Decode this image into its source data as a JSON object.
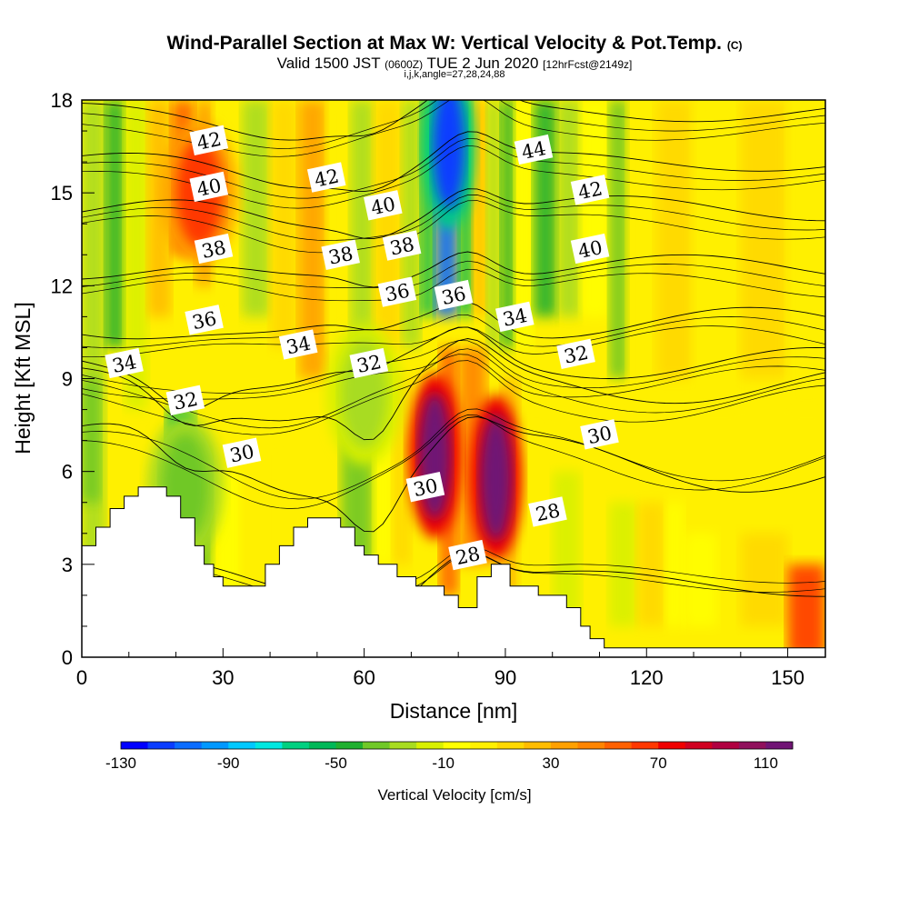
{
  "header": {
    "title_main": "Wind-Parallel Section at Max W: Vertical Velocity & Pot.Temp.",
    "title_mark": "(C)",
    "valid_prefix": "Valid 1500 JST",
    "valid_utc": "(0600Z)",
    "valid_date": "TUE 2 Jun 2020",
    "valid_fcst": "[12hrFcst@2149z]",
    "params": "i,j,k,angle=27,28,24,88"
  },
  "chart_data": {
    "type": "heatmap",
    "xlabel": "Distance [nm]",
    "ylabel": "Height [Kft MSL]",
    "xlim": [
      0,
      158
    ],
    "ylim": [
      0,
      18
    ],
    "x_ticks": [
      0,
      30,
      60,
      90,
      120,
      150
    ],
    "y_ticks": [
      0,
      3,
      6,
      9,
      12,
      15,
      18
    ],
    "colorbar": {
      "label": "Vertical Velocity [cm/s]",
      "min": -130,
      "step": 10,
      "tick_labels": [
        "-130",
        "-90",
        "-50",
        "-10",
        "30",
        "70",
        "110"
      ],
      "colors": [
        "#0000ff",
        "#0a3cff",
        "#0a6cff",
        "#0098ff",
        "#00c8ff",
        "#00e8e0",
        "#00d080",
        "#00b858",
        "#20b030",
        "#70c828",
        "#a8dc20",
        "#d8f000",
        "#ffff00",
        "#fff000",
        "#ffd800",
        "#ffbc00",
        "#ffa000",
        "#ff8400",
        "#ff6000",
        "#ff3800",
        "#f00000",
        "#d00020",
        "#b00040",
        "#90105c",
        "#701474"
      ]
    },
    "velocity_features": [
      {
        "x": 78,
        "y": 16.5,
        "value": -120
      },
      {
        "x": 75,
        "y": 6.5,
        "value": 130
      },
      {
        "x": 88,
        "y": 5.8,
        "value": 130
      },
      {
        "x": 25,
        "y": 15,
        "value": 60
      },
      {
        "x": 22,
        "y": 5.5,
        "value": -40
      },
      {
        "x": 60,
        "y": 8.5,
        "value": -30
      }
    ],
    "terrain": [
      [
        0,
        3.6
      ],
      [
        3,
        3.6
      ],
      [
        3,
        4.2
      ],
      [
        6,
        4.2
      ],
      [
        6,
        4.8
      ],
      [
        9,
        4.8
      ],
      [
        9,
        5.2
      ],
      [
        12,
        5.2
      ],
      [
        12,
        5.5
      ],
      [
        18,
        5.5
      ],
      [
        18,
        5.2
      ],
      [
        21,
        5.2
      ],
      [
        21,
        4.5
      ],
      [
        24,
        4.5
      ],
      [
        24,
        3.6
      ],
      [
        26,
        3.6
      ],
      [
        26,
        3.0
      ],
      [
        28,
        3.0
      ],
      [
        28,
        2.6
      ],
      [
        30,
        2.6
      ],
      [
        30,
        2.3
      ],
      [
        39,
        2.3
      ],
      [
        39,
        3.0
      ],
      [
        42,
        3.0
      ],
      [
        42,
        3.6
      ],
      [
        45,
        3.6
      ],
      [
        45,
        4.2
      ],
      [
        48,
        4.2
      ],
      [
        48,
        4.5
      ],
      [
        55,
        4.5
      ],
      [
        55,
        4.2
      ],
      [
        58,
        4.2
      ],
      [
        58,
        3.6
      ],
      [
        60,
        3.6
      ],
      [
        60,
        3.3
      ],
      [
        63,
        3.3
      ],
      [
        63,
        3.0
      ],
      [
        67,
        3.0
      ],
      [
        67,
        2.6
      ],
      [
        71,
        2.6
      ],
      [
        71,
        2.3
      ],
      [
        77,
        2.3
      ],
      [
        77,
        2.0
      ],
      [
        80,
        2.0
      ],
      [
        80,
        1.6
      ],
      [
        84,
        1.6
      ],
      [
        84,
        2.6
      ],
      [
        87,
        2.6
      ],
      [
        87,
        3.0
      ],
      [
        91,
        3.0
      ],
      [
        91,
        2.3
      ],
      [
        97,
        2.3
      ],
      [
        97,
        2.0
      ],
      [
        103,
        2.0
      ],
      [
        103,
        1.6
      ],
      [
        106,
        1.6
      ],
      [
        106,
        1.0
      ],
      [
        108,
        1.0
      ],
      [
        108,
        0.6
      ],
      [
        111,
        0.6
      ],
      [
        111,
        0.3
      ],
      [
        158,
        0.3
      ]
    ],
    "isentropes": [
      {
        "value": 28,
        "label": "28",
        "y_start": 3.0,
        "amp": 0.3
      },
      {
        "value": 30,
        "label": "30",
        "y_start": 6.8,
        "amp": 0.8
      },
      {
        "value": 32,
        "label": "32",
        "y_start": 8.8,
        "amp": 0.6
      },
      {
        "value": 34,
        "label": "34",
        "y_start": 9.5,
        "amp": 0.5
      },
      {
        "value": 36,
        "label": "36",
        "y_start": 10.8,
        "amp": 0.5
      },
      {
        "value": 38,
        "label": "38",
        "y_start": 12.6,
        "amp": 0.4
      },
      {
        "value": 40,
        "label": "40",
        "y_start": 14.5,
        "amp": 0.4
      },
      {
        "value": 42,
        "label": "42",
        "y_start": 16.0,
        "amp": 0.3
      },
      {
        "value": 44,
        "label": "44",
        "y_start": 17.6,
        "amp": 0.3
      }
    ],
    "contour_labels": [
      {
        "text": "42",
        "x": 27,
        "y": 16.7
      },
      {
        "text": "40",
        "x": 27,
        "y": 15.2
      },
      {
        "text": "38",
        "x": 28,
        "y": 13.2
      },
      {
        "text": "36",
        "x": 26,
        "y": 10.9
      },
      {
        "text": "34",
        "x": 9,
        "y": 9.5
      },
      {
        "text": "32",
        "x": 22,
        "y": 8.3
      },
      {
        "text": "30",
        "x": 34,
        "y": 6.6
      },
      {
        "text": "42",
        "x": 52,
        "y": 15.5
      },
      {
        "text": "38",
        "x": 55,
        "y": 13.0
      },
      {
        "text": "34",
        "x": 46,
        "y": 10.1
      },
      {
        "text": "32",
        "x": 61,
        "y": 9.5
      },
      {
        "text": "40",
        "x": 64,
        "y": 14.6
      },
      {
        "text": "38",
        "x": 68,
        "y": 13.3
      },
      {
        "text": "36",
        "x": 67,
        "y": 11.8
      },
      {
        "text": "36",
        "x": 79,
        "y": 11.7
      },
      {
        "text": "30",
        "x": 73,
        "y": 5.5
      },
      {
        "text": "28",
        "x": 82,
        "y": 3.3
      },
      {
        "text": "44",
        "x": 96,
        "y": 16.4
      },
      {
        "text": "42",
        "x": 108,
        "y": 15.1
      },
      {
        "text": "40",
        "x": 108,
        "y": 13.2
      },
      {
        "text": "34",
        "x": 92,
        "y": 11.0
      },
      {
        "text": "32",
        "x": 105,
        "y": 9.8
      },
      {
        "text": "30",
        "x": 110,
        "y": 7.2
      },
      {
        "text": "28",
        "x": 99,
        "y": 4.7
      }
    ]
  }
}
